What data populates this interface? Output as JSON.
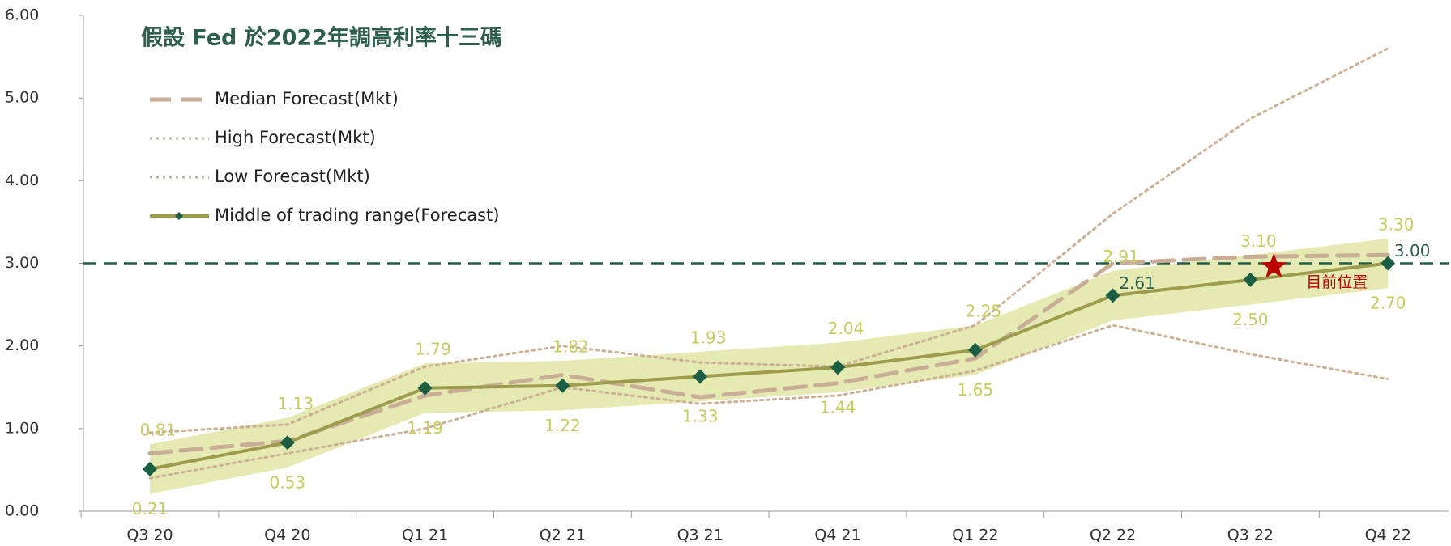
{
  "chart_data": {
    "type": "line",
    "title": "假設 Fed 於2022年調高利率十三碼",
    "categories": [
      "Q3 20",
      "Q4 20",
      "Q1 21",
      "Q2 21",
      "Q3 21",
      "Q4 21",
      "Q1 22",
      "Q2 22",
      "Q3 22",
      "Q4 22"
    ],
    "ylim": [
      0,
      6
    ],
    "yticks": [
      {
        "value": 0,
        "label": "0.00"
      },
      {
        "value": 1,
        "label": "1.00"
      },
      {
        "value": 2,
        "label": "2.00"
      },
      {
        "value": 3,
        "label": "3.00"
      },
      {
        "value": 4,
        "label": "4.00"
      },
      {
        "value": 5,
        "label": "5.00"
      },
      {
        "value": 6,
        "label": "6.00"
      }
    ],
    "series": [
      {
        "name": "Median Forecast(Mkt)",
        "color": "#c9ad96",
        "dash": "dashed",
        "values": [
          0.7,
          0.85,
          1.4,
          1.65,
          1.38,
          1.55,
          1.85,
          3.0,
          3.08,
          3.1
        ]
      },
      {
        "name": "High Forecast(Mkt)",
        "color": "#cdb093",
        "dash": "dotted",
        "values": [
          0.95,
          1.05,
          1.75,
          2.0,
          1.8,
          1.75,
          2.25,
          3.6,
          4.75,
          5.6
        ]
      },
      {
        "name": "Low Forecast(Mkt)",
        "color": "#cdb093",
        "dash": "dotted",
        "values": [
          0.4,
          0.7,
          1.0,
          1.5,
          1.3,
          1.4,
          1.7,
          2.25,
          1.9,
          1.6
        ]
      },
      {
        "name": "Middle of trading range(Forecast)",
        "color": "#9c9c4c",
        "dash": "solid",
        "marker": "diamond",
        "marker_color": "#1b5e43",
        "values": [
          0.51,
          0.83,
          1.49,
          1.52,
          1.63,
          1.74,
          1.95,
          2.61,
          2.8,
          3.0
        ],
        "value_labels": [
          null,
          null,
          null,
          null,
          null,
          null,
          null,
          "2.61",
          null,
          "3.00"
        ]
      }
    ],
    "band": {
      "color": "#dfe6a4",
      "upper": {
        "values": [
          0.81,
          1.13,
          1.79,
          1.82,
          1.93,
          2.04,
          2.25,
          2.91,
          3.1,
          3.3
        ],
        "value_labels": [
          "0.81",
          "1.13",
          "1.79",
          "1.82",
          "1.93",
          "2.04",
          "2.25",
          "2.91",
          "3.10",
          "3.30"
        ]
      },
      "lower": {
        "values": [
          0.21,
          0.53,
          1.19,
          1.22,
          1.33,
          1.44,
          1.65,
          2.31,
          2.5,
          2.7
        ],
        "value_labels": [
          "0.21",
          "0.53",
          "1.19",
          "1.22",
          "1.33",
          "1.44",
          "1.65",
          null,
          "2.50",
          "2.70"
        ]
      }
    },
    "reference_line": {
      "value": 3.0,
      "color": "#1f5c45"
    },
    "annotation": {
      "text": "目前位置",
      "value": 2.96,
      "color": "#c00000"
    }
  }
}
